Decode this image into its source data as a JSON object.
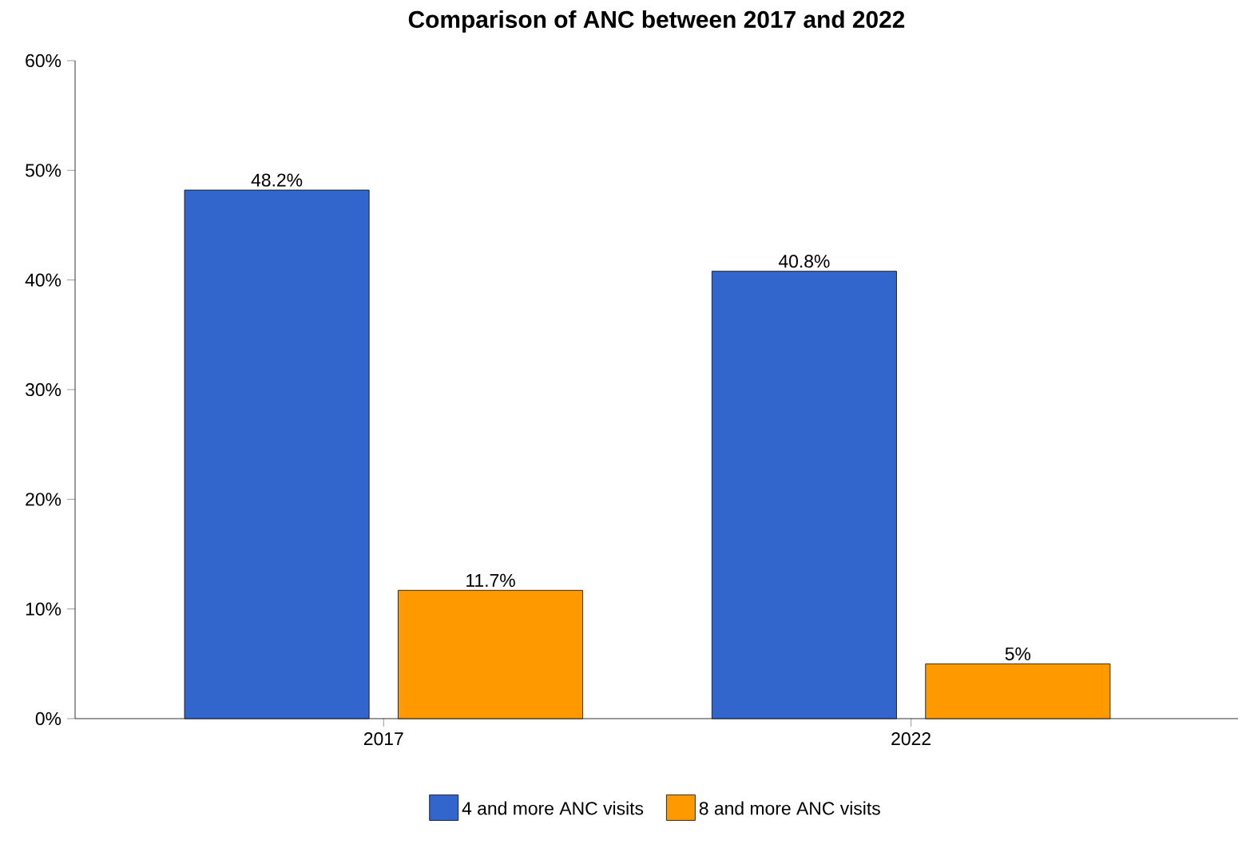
{
  "chart_data": {
    "type": "bar",
    "title": "Comparison of ANC between 2017 and 2022",
    "categories": [
      "2017",
      "2022"
    ],
    "series": [
      {
        "name": "4 and more ANC visits",
        "color": "#3366cc",
        "values": [
          48.2,
          40.8
        ],
        "value_labels": [
          "48.2%",
          "40.8%"
        ]
      },
      {
        "name": "8 and more ANC visits",
        "color": "#ff9900",
        "values": [
          11.7,
          5
        ],
        "value_labels": [
          "11.7%",
          "5%"
        ]
      }
    ],
    "ylim": [
      0,
      60
    ],
    "yticks": [
      {
        "value": 0,
        "label": "0%"
      },
      {
        "value": 10,
        "label": "10%"
      },
      {
        "value": 20,
        "label": "20%"
      },
      {
        "value": 30,
        "label": "30%"
      },
      {
        "value": 40,
        "label": "40%"
      },
      {
        "value": 50,
        "label": "50%"
      },
      {
        "value": 60,
        "label": "60%"
      }
    ],
    "legend": "bottom"
  }
}
